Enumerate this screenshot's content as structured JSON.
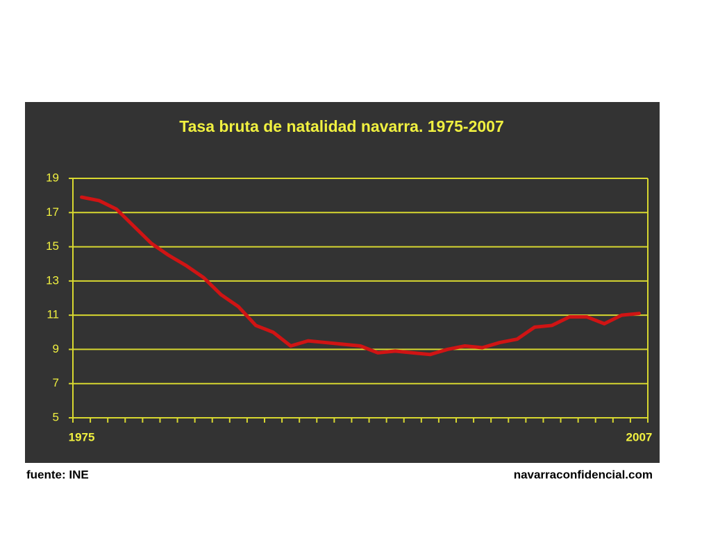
{
  "chart_data": {
    "type": "line",
    "title": "Tasa bruta de natalidad navarra. 1975-2007",
    "categories": [
      "1975",
      null,
      null,
      null,
      null,
      null,
      null,
      null,
      null,
      null,
      null,
      null,
      null,
      null,
      null,
      null,
      null,
      null,
      null,
      null,
      null,
      null,
      null,
      null,
      null,
      null,
      null,
      null,
      null,
      null,
      null,
      null,
      "2007"
    ],
    "values": [
      17.9,
      17.7,
      17.2,
      16.2,
      15.2,
      14.5,
      13.9,
      13.2,
      12.2,
      11.5,
      10.4,
      10.0,
      9.2,
      9.5,
      9.4,
      9.3,
      9.2,
      8.8,
      8.9,
      8.8,
      8.7,
      9.0,
      9.2,
      9.1,
      9.4,
      9.6,
      10.3,
      10.4,
      10.9,
      10.9,
      10.5,
      11.0,
      11.1
    ],
    "color": "#d01414",
    "ylim": [
      5,
      19
    ],
    "yticks": [
      5,
      7,
      9,
      11,
      13,
      15,
      17,
      19
    ],
    "grid": true,
    "source": "fuente: INE",
    "credit": "navarraconfidencial.com"
  }
}
